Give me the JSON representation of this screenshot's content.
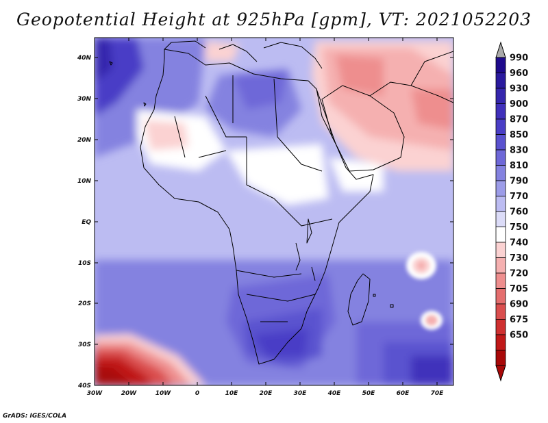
{
  "title": "Geopotential Height at 925hPa [gpm], VT: 2021052203",
  "credit": "GrADS: IGES/COLA",
  "axes": {
    "lat_labels": [
      "40N",
      "30N",
      "20N",
      "10N",
      "EQ",
      "10S",
      "20S",
      "30S",
      "40S"
    ],
    "lon_labels": [
      "30W",
      "20W",
      "10W",
      "0",
      "10E",
      "20E",
      "30E",
      "40E",
      "50E",
      "60E",
      "70E"
    ],
    "lat_range": [
      -40,
      45
    ],
    "lon_range": [
      -30,
      75
    ]
  },
  "colorbar": {
    "levels": [
      "990",
      "960",
      "930",
      "900",
      "870",
      "850",
      "830",
      "810",
      "790",
      "770",
      "760",
      "750",
      "740",
      "730",
      "720",
      "705",
      "690",
      "675",
      "650"
    ],
    "colors": [
      "#1e0a8c",
      "#2a1a9e",
      "#3526ad",
      "#4030bb",
      "#4a3ec6",
      "#5a52cf",
      "#6e68d8",
      "#8482e0",
      "#9c9ce8",
      "#bcbcf2",
      "#dcdcf8",
      "#ffffff",
      "#fbd2d2",
      "#f5b0b0",
      "#ee8e8e",
      "#e46e6e",
      "#da4e4e",
      "#cf3030",
      "#c01818",
      "#a80808"
    ]
  },
  "chart_data": {
    "type": "contour-map",
    "variable": "Geopotential Height at 925hPa",
    "units": "gpm",
    "valid_time": "2021052203",
    "region": "Africa and Arabian Peninsula",
    "notable_features": [
      "Lowest heights (650-705 gpm) in South Atlantic near 40S, 30W-10W",
      "Low heights (720-760 gpm) over Arabian Peninsula, Iran and Sahel/West Africa",
      "High heights (850-900 gpm) over South Africa around 30S",
      "High heights (870-930 gpm) over North Atlantic near 35-40N, 30W",
      "Small local minima (730-750 gpm) near 10S 65E and 25S 68E"
    ]
  }
}
